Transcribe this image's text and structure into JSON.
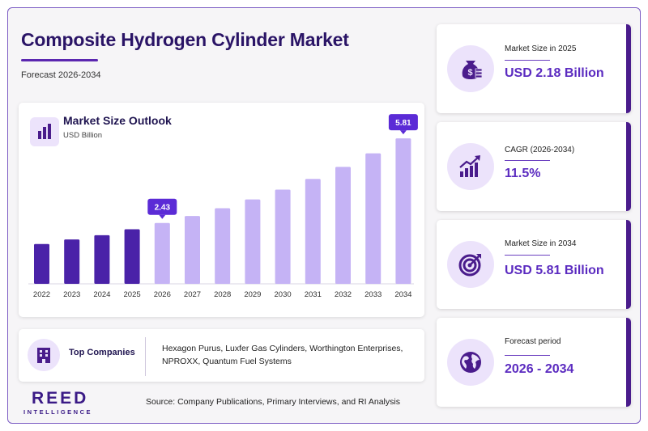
{
  "header": {
    "title": "Composite Hydrogen Cylinder Market",
    "subtitle": "Forecast 2026-2034"
  },
  "chart_data": {
    "type": "bar",
    "title": "Market Size Outlook",
    "unit": "USD Billion",
    "categories": [
      "2022",
      "2023",
      "2024",
      "2025",
      "2026",
      "2027",
      "2028",
      "2029",
      "2030",
      "2031",
      "2032",
      "2033",
      "2034"
    ],
    "values": [
      1.59,
      1.77,
      1.94,
      2.18,
      2.43,
      2.71,
      3.02,
      3.37,
      3.76,
      4.19,
      4.67,
      5.21,
      5.81
    ],
    "historical_years": [
      "2022",
      "2023",
      "2024",
      "2025"
    ],
    "callouts": [
      {
        "category": "2026",
        "label": "2.43"
      },
      {
        "category": "2034",
        "label": "5.81"
      }
    ],
    "colors": {
      "historical": "#4a22a8",
      "forecast": "#c5b3f5",
      "callout": "#5b2bd6"
    }
  },
  "companies": {
    "label": "Top Companies",
    "list": "Hexagon Purus, Luxfer Gas Cylinders, Worthington Enterprises, NPROXX, Quantum Fuel Systems"
  },
  "brand": {
    "name": "REED",
    "tagline": "INTELLIGENCE"
  },
  "source": "Source: Company Publications, Primary Interviews, and RI Analysis",
  "stats": [
    {
      "label": "Market Size in 2025",
      "value": "USD 2.18 Billion",
      "icon": "money-bag-icon"
    },
    {
      "label": "CAGR (2026-2034)",
      "value": "11.5%",
      "icon": "growth-chart-icon"
    },
    {
      "label": "Market Size in 2034",
      "value": "USD 5.81 Billion",
      "icon": "target-icon"
    },
    {
      "label": "Forecast period",
      "value": "2026 - 2034",
      "icon": "globe-icon"
    }
  ],
  "accent": "#5b2bc0"
}
